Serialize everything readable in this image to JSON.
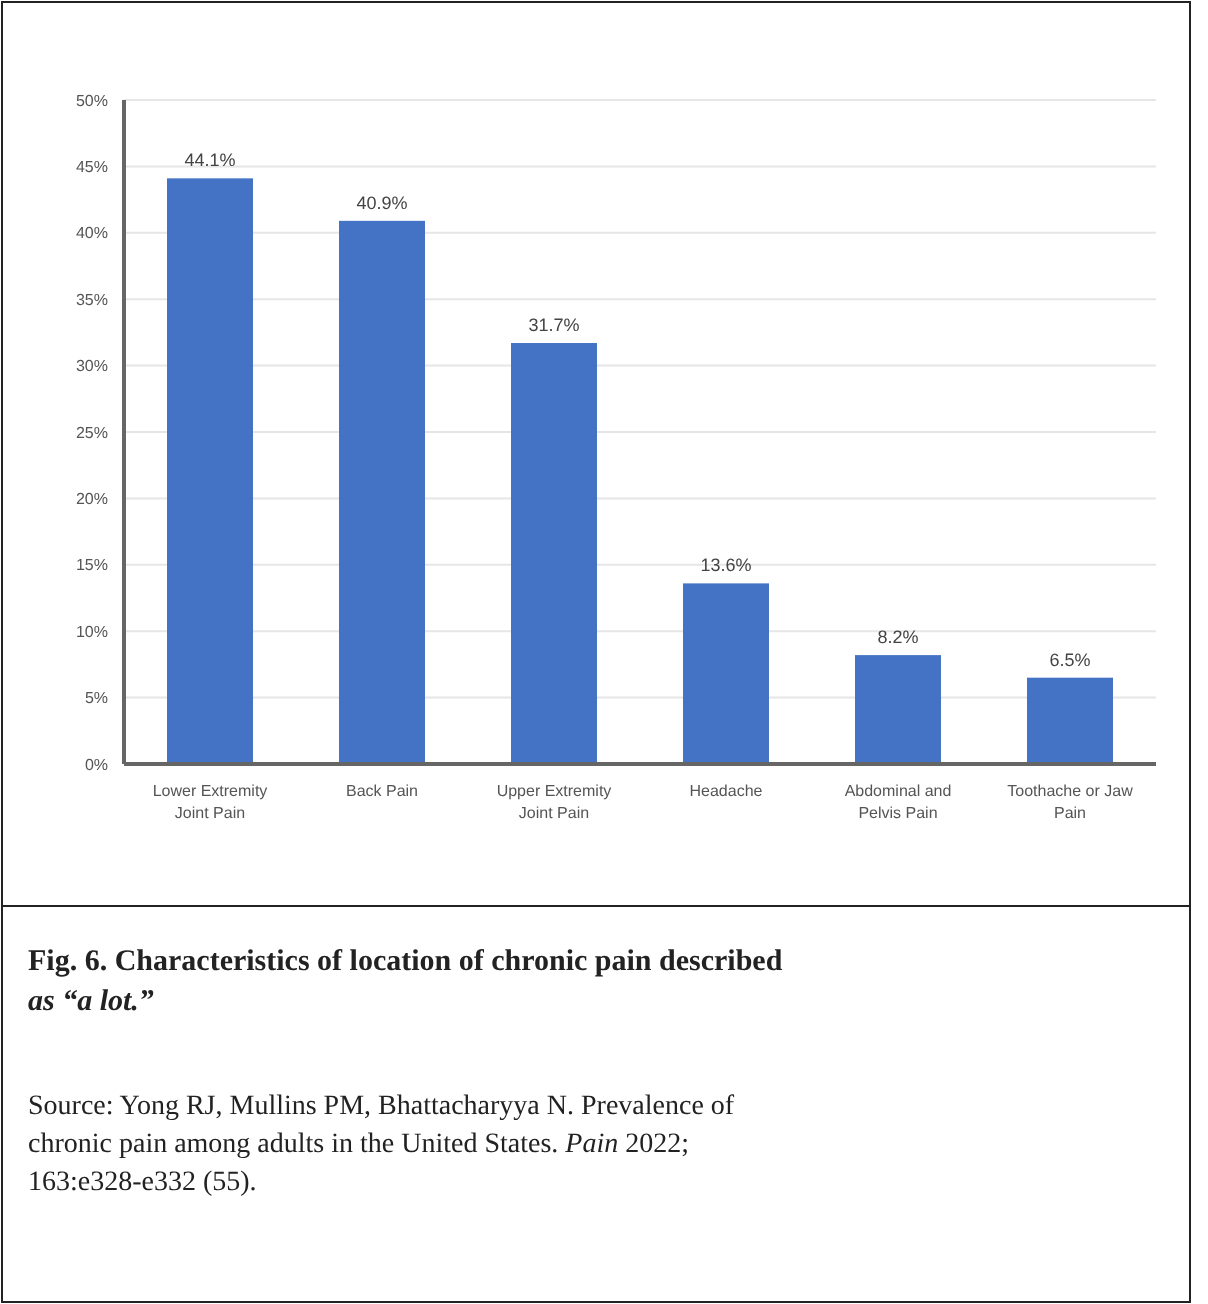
{
  "chart_data": {
    "type": "bar",
    "title": "Fig. 6. Characteristics of location of chronic pain described as “a lot.”",
    "categories": [
      "Lower Extremity Joint Pain",
      "Back Pain",
      "Upper Extremity Joint Pain",
      "Headache",
      "Abdominal and Pelvis Pain",
      "Toothache or Jaw Pain"
    ],
    "values": [
      44.1,
      40.9,
      31.7,
      13.6,
      8.2,
      6.5
    ],
    "value_labels": [
      "44.1%",
      "40.9%",
      "31.7%",
      "13.6%",
      "8.2%",
      "6.5%"
    ],
    "color": "#4472c4",
    "ylim": [
      0,
      50
    ],
    "yticks": [
      {
        "value": 0,
        "label": "0%"
      },
      {
        "value": 5,
        "label": "5%"
      },
      {
        "value": 10,
        "label": "10%"
      },
      {
        "value": 15,
        "label": "15%"
      },
      {
        "value": 20,
        "label": "20%"
      },
      {
        "value": 25,
        "label": "25%"
      },
      {
        "value": 30,
        "label": "30%"
      },
      {
        "value": 35,
        "label": "35%"
      },
      {
        "value": 40,
        "label": "40%"
      },
      {
        "value": 45,
        "label": "45%"
      },
      {
        "value": 50,
        "label": "50%"
      }
    ],
    "grid": "y",
    "annotations": [
      "Source: Yong RJ, Mullins PM, Bhattacharyya N. Prevalence of chronic pain among adults in the United States. *Pain* 2022; 163:e328-e332 (55)."
    ]
  }
}
